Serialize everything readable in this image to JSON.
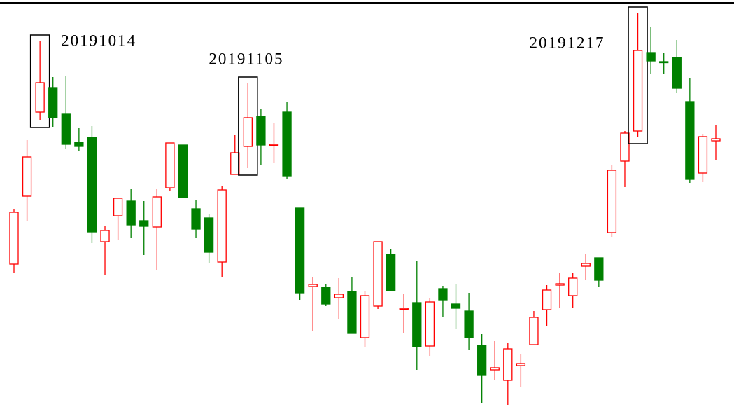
{
  "chart_data": {
    "type": "candlestick",
    "categories": [
      null,
      null,
      "20191014",
      null,
      null,
      null,
      null,
      null,
      null,
      null,
      null,
      null,
      null,
      null,
      null,
      null,
      null,
      null,
      "20191105",
      null,
      null,
      null,
      null,
      null,
      null,
      null,
      null,
      null,
      null,
      null,
      null,
      null,
      null,
      null,
      null,
      null,
      null,
      null,
      null,
      null,
      null,
      null,
      null,
      null,
      null,
      null,
      null,
      null,
      "20191217",
      null,
      null,
      null,
      null,
      null,
      null
    ],
    "open": [
      223,
      320,
      440,
      475,
      437,
      397,
      404,
      255,
      292,
      313,
      285,
      276,
      332,
      393,
      302,
      289,
      226,
      351,
      391,
      434,
      393,
      440,
      303,
      191,
      190,
      175,
      184,
      118,
      163,
      237,
      159,
      168,
      106,
      188,
      166,
      156,
      107,
      72,
      57,
      78,
      108,
      158,
      193,
      178,
      220,
      232,
      268,
      370,
      413,
      525,
      512,
      518,
      455,
      353,
      399
    ],
    "high": [
      302,
      400,
      542,
      490,
      492,
      417,
      420,
      278,
      317,
      330,
      313,
      330,
      396,
      393,
      315,
      295,
      335,
      407,
      482,
      445,
      424,
      454,
      303,
      205,
      195,
      203,
      204,
      185,
      255,
      245,
      180,
      227,
      174,
      192,
      195,
      182,
      123,
      113,
      110,
      95,
      156,
      193,
      210,
      210,
      237,
      232,
      364,
      413,
      582,
      562,
      525,
      543,
      488,
      408,
      422
    ],
    "low": [
      210,
      284,
      428,
      418,
      387,
      385,
      253,
      207,
      258,
      260,
      236,
      215,
      327,
      318,
      260,
      225,
      205,
      351,
      360,
      365,
      367,
      345,
      172,
      127,
      163,
      145,
      124,
      104,
      159,
      185,
      125,
      72,
      92,
      147,
      130,
      100,
      25,
      58,
      22,
      48,
      108,
      135,
      160,
      160,
      200,
      191,
      262,
      333,
      405,
      495,
      495,
      467,
      339,
      340,
      372
    ],
    "close": [
      297,
      376,
      482,
      432,
      394,
      391,
      269,
      271,
      317,
      279,
      277,
      319,
      396,
      318,
      273,
      240,
      329,
      382,
      432,
      393,
      394,
      349,
      182,
      194,
      166,
      180,
      124,
      178,
      255,
      185,
      160,
      105,
      169,
      172,
      160,
      118,
      64,
      75,
      102,
      81,
      147,
      186,
      195,
      203,
      224,
      200,
      357,
      410,
      528,
      513,
      511,
      474,
      344,
      405,
      402
    ],
    "up_color": "#ff0000",
    "down_color": "#008000",
    "ylim": [
      19,
      600
    ]
  }
}
